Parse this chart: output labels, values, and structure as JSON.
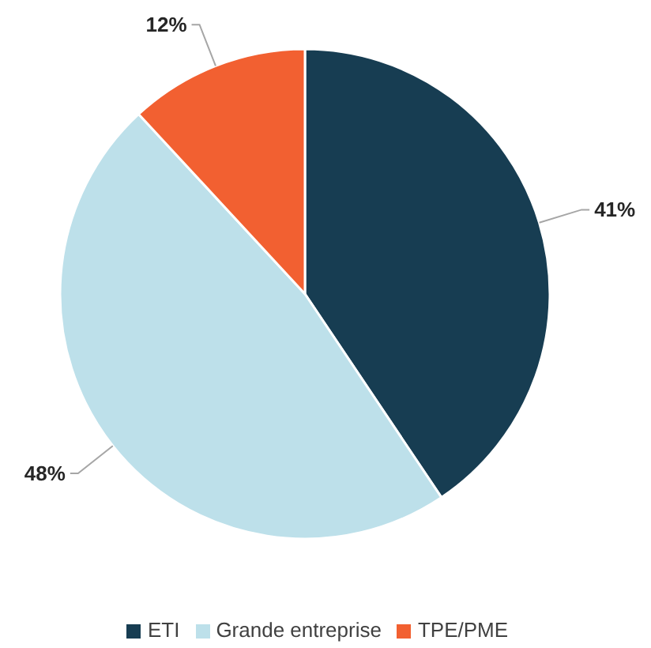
{
  "chart_data": {
    "type": "pie",
    "categories": [
      "ETI",
      "Grande entreprise",
      "TPE/PME"
    ],
    "values": [
      41,
      48,
      12
    ],
    "colors": [
      "#173d52",
      "#bde0ea",
      "#f26031"
    ],
    "value_labels": [
      "41%",
      "48%",
      "12%"
    ],
    "legend": "bottom"
  }
}
